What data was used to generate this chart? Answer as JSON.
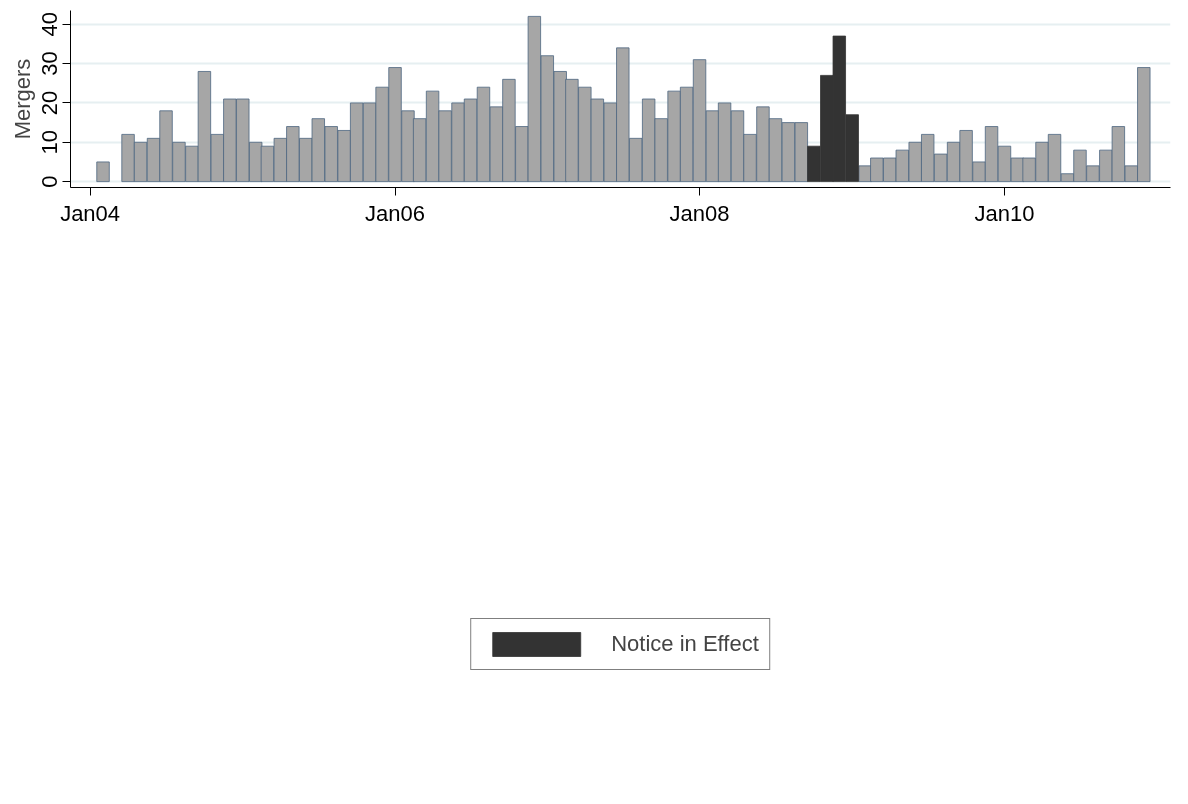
{
  "chart_data": {
    "type": "bar",
    "ylabel": "Mergers",
    "x": [
      "2004-02",
      "2004-03",
      "2004-04",
      "2004-05",
      "2004-06",
      "2004-07",
      "2004-08",
      "2004-09",
      "2004-10",
      "2004-11",
      "2004-12",
      "2005-01",
      "2005-02",
      "2005-03",
      "2005-04",
      "2005-05",
      "2005-06",
      "2005-07",
      "2005-08",
      "2005-09",
      "2005-10",
      "2005-11",
      "2005-12",
      "2006-01",
      "2006-02",
      "2006-03",
      "2006-04",
      "2006-05",
      "2006-06",
      "2006-07",
      "2006-08",
      "2006-09",
      "2006-10",
      "2006-11",
      "2006-12",
      "2007-01",
      "2007-02",
      "2007-03",
      "2007-04",
      "2007-05",
      "2007-06",
      "2007-07",
      "2007-08",
      "2007-09",
      "2007-10",
      "2007-11",
      "2007-12",
      "2008-01",
      "2008-02",
      "2008-03",
      "2008-04",
      "2008-05",
      "2008-06",
      "2008-07",
      "2008-08",
      "2008-09",
      "2008-10",
      "2008-11",
      "2008-12",
      "2009-01",
      "2009-02",
      "2009-03",
      "2009-04",
      "2009-05",
      "2009-06",
      "2009-07",
      "2009-08",
      "2009-09",
      "2009-10",
      "2009-11",
      "2009-12",
      "2010-01",
      "2010-02",
      "2010-03",
      "2010-04",
      "2010-05",
      "2010-06",
      "2010-07",
      "2010-08",
      "2010-09",
      "2010-10",
      "2010-11",
      "2010-12"
    ],
    "series": [
      {
        "color": "#a6a6a6",
        "values": [
          5,
          null,
          12,
          10,
          11,
          18,
          10,
          9,
          28,
          12,
          21,
          21,
          10,
          9,
          11,
          14,
          11,
          16,
          14,
          13,
          20,
          20,
          24,
          29,
          18,
          16,
          23,
          18,
          20,
          21,
          24,
          19,
          26,
          14,
          42,
          32,
          28,
          26,
          24,
          21,
          20,
          34,
          11,
          21,
          16,
          23,
          24,
          31,
          18,
          20,
          18,
          12,
          19,
          16,
          15,
          15,
          null,
          null,
          null,
          null,
          4,
          6,
          6,
          8,
          10,
          12,
          7,
          10,
          13,
          5,
          14,
          9,
          6,
          6,
          10,
          12,
          2,
          8,
          4,
          8,
          14,
          4,
          29
        ]
      },
      {
        "name": "Notice in Effect",
        "color": "#333333",
        "values": [
          null,
          null,
          null,
          null,
          null,
          null,
          null,
          null,
          null,
          null,
          null,
          null,
          null,
          null,
          null,
          null,
          null,
          null,
          null,
          null,
          null,
          null,
          null,
          null,
          null,
          null,
          null,
          null,
          null,
          null,
          null,
          null,
          null,
          null,
          null,
          null,
          null,
          null,
          null,
          null,
          null,
          null,
          null,
          null,
          null,
          null,
          null,
          null,
          null,
          null,
          null,
          null,
          null,
          null,
          null,
          null,
          9,
          27,
          37,
          17,
          null,
          null,
          null,
          null,
          null,
          null,
          null,
          null,
          null,
          null,
          null,
          null,
          null,
          null,
          null,
          null,
          null,
          null,
          null,
          null,
          null,
          null,
          null
        ]
      }
    ],
    "xlim": [
      "2003-11-15",
      "2011-02-03"
    ],
    "xticks": [
      {
        "value": "2004-01",
        "label": "Jan04"
      },
      {
        "value": "2006-01",
        "label": "Jan06"
      },
      {
        "value": "2008-01",
        "label": "Jan08"
      },
      {
        "value": "2010-01",
        "label": "Jan10"
      }
    ],
    "ylim": [
      -1.5,
      43.5
    ],
    "yticks": [
      0,
      10,
      20,
      30,
      40
    ],
    "grid": "y",
    "legend": "bottom"
  }
}
